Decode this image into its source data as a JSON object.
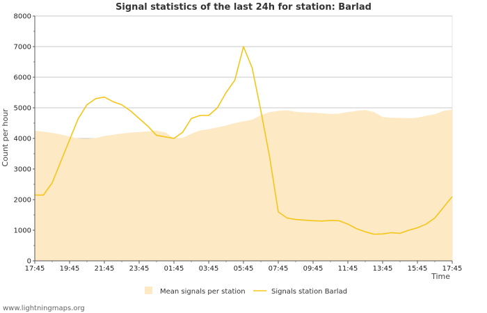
{
  "chart_data": {
    "type": "area+line",
    "title": "Signal statistics of the last 24h for station: Barlad",
    "ylabel": "Count per hour",
    "xlabel": "Time",
    "ylim": [
      0,
      8000
    ],
    "yticks": [
      0,
      1000,
      2000,
      3000,
      4000,
      5000,
      6000,
      7000,
      8000
    ],
    "xticks": [
      "17:45",
      "19:45",
      "21:45",
      "23:45",
      "01:45",
      "03:45",
      "05:45",
      "07:45",
      "09:45",
      "11:45",
      "13:45",
      "15:45",
      "17:45"
    ],
    "x_hours": [
      0,
      0.5,
      1,
      1.5,
      2,
      2.5,
      3,
      3.5,
      4,
      4.5,
      5,
      5.5,
      6,
      6.5,
      7,
      7.5,
      8,
      8.5,
      9,
      9.5,
      10,
      10.5,
      11,
      11.5,
      12,
      12.5,
      13,
      13.5,
      14,
      14.5,
      15,
      15.5,
      16,
      16.5,
      17,
      17.5,
      18,
      18.5,
      19,
      19.5,
      20,
      20.5,
      21,
      21.5,
      22,
      22.5,
      23,
      23.5,
      24
    ],
    "series": [
      {
        "name": "Mean signals per station",
        "style": "area",
        "color": "#fde9c4",
        "values": [
          4250,
          4220,
          4180,
          4130,
          4060,
          4000,
          3990,
          4010,
          4080,
          4120,
          4160,
          4190,
          4210,
          4230,
          4250,
          4200,
          4000,
          4020,
          4150,
          4260,
          4300,
          4360,
          4420,
          4500,
          4560,
          4610,
          4760,
          4860,
          4900,
          4920,
          4870,
          4850,
          4840,
          4820,
          4800,
          4810,
          4860,
          4900,
          4930,
          4860,
          4700,
          4680,
          4670,
          4660,
          4680,
          4740,
          4790,
          4900,
          4940
        ]
      },
      {
        "name": "Signals station Barlad",
        "style": "line",
        "color": "#f5c518",
        "values": [
          2150,
          2150,
          2550,
          3250,
          3950,
          4650,
          5100,
          5300,
          5350,
          5200,
          5100,
          4900,
          4650,
          4400,
          4100,
          4050,
          4000,
          4200,
          4650,
          4750,
          4750,
          5000,
          5500,
          5900,
          7000,
          6300,
          4900,
          3400,
          1600,
          1400,
          1350,
          1330,
          1310,
          1300,
          1320,
          1310,
          1200,
          1050,
          950,
          870,
          880,
          920,
          900,
          1000,
          1080,
          1200,
          1400,
          1750,
          2100
        ]
      }
    ],
    "legend": [
      "Mean signals per station",
      "Signals station Barlad"
    ],
    "legend_position": "bottom-center",
    "gridlines": true
  },
  "footer": "www.lightningmaps.org"
}
